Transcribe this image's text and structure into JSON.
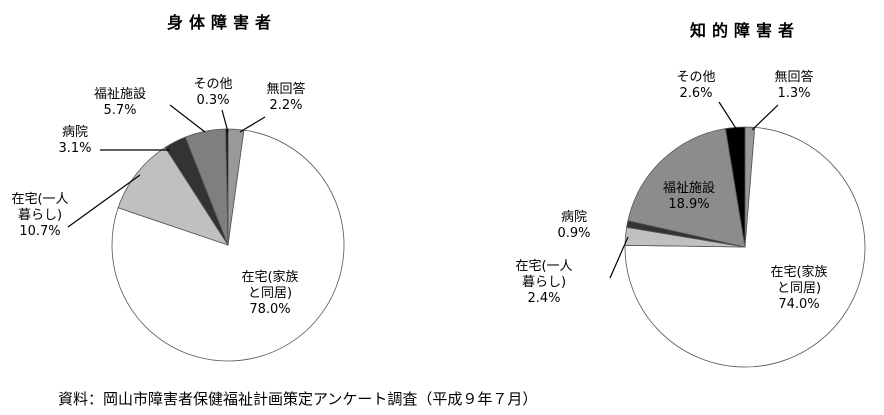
{
  "source": "資料：岡山市障害者保健福祉計画策定アンケート調査（平成９年７月）",
  "chart_data": [
    {
      "type": "pie",
      "title": "身体障害者",
      "start": "12 o'clock",
      "direction": "clockwise",
      "slices": [
        {
          "label": "無回答",
          "value": 2.2,
          "text": "2.2%",
          "color": "#999999"
        },
        {
          "label": "在宅(家族と同居)",
          "lines": [
            "在宅(家族",
            "と同居)"
          ],
          "value": 78.0,
          "text": "78.0%",
          "color": "#ffffff"
        },
        {
          "label": "在宅(一人暮らし)",
          "lines": [
            "在宅(一人",
            "暮らし)"
          ],
          "value": 10.7,
          "text": "10.7%",
          "color": "#c0c0c0"
        },
        {
          "label": "病院",
          "value": 3.1,
          "text": "3.1%",
          "color": "#333333"
        },
        {
          "label": "福祉施設",
          "value": 5.7,
          "text": "5.7%",
          "color": "#7f7f7f"
        },
        {
          "label": "その他",
          "value": 0.3,
          "text": "0.3%",
          "color": "#000000"
        }
      ]
    },
    {
      "type": "pie",
      "title": "知的障害者",
      "start": "12 o'clock",
      "direction": "clockwise",
      "slices": [
        {
          "label": "無回答",
          "value": 1.3,
          "text": "1.3%",
          "color": "#999999"
        },
        {
          "label": "在宅(家族と同居)",
          "lines": [
            "在宅(家族",
            "と同居)"
          ],
          "value": 74.0,
          "text": "74.0%",
          "color": "#ffffff"
        },
        {
          "label": "在宅(一人暮らし)",
          "lines": [
            "在宅(一人",
            "暮らし)"
          ],
          "value": 2.4,
          "text": "2.4%",
          "color": "#c0c0c0"
        },
        {
          "label": "病院",
          "value": 0.9,
          "text": "0.9%",
          "color": "#333333"
        },
        {
          "label": "福祉施設",
          "value": 18.9,
          "text": "18.9%",
          "color": "#8c8c8c"
        },
        {
          "label": "その他",
          "value": 2.6,
          "text": "2.6%",
          "color": "#000000"
        }
      ]
    }
  ]
}
